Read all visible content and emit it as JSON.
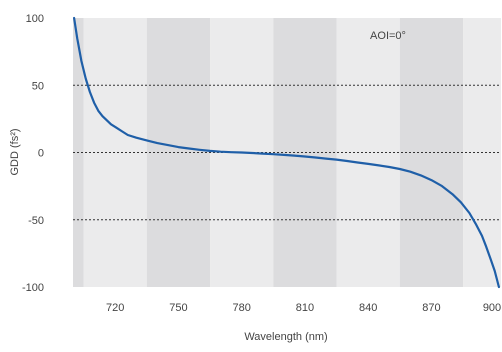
{
  "chart_data": {
    "type": "line",
    "title": "",
    "xlabel": "Wavelength (nm)",
    "ylabel": "GDD (fs²)",
    "xlim": [
      700,
      903
    ],
    "ylim": [
      -100,
      100
    ],
    "x_ticks": [
      720,
      750,
      780,
      810,
      840,
      870,
      900
    ],
    "y_ticks": [
      100,
      50,
      0,
      -50,
      -100
    ],
    "x_tick_labels": [
      "720",
      "750",
      "780",
      "810",
      "840",
      "870",
      "900"
    ],
    "y_tick_labels": [
      "100",
      "50",
      "0",
      "-50",
      "-100"
    ],
    "grid": "dotted horizontal lines at 50, 0, -50; alternating shaded vertical bands",
    "annotation": "AOI=0°",
    "band_colors": [
      "#dcdcde",
      "#ebebec"
    ],
    "series": [
      {
        "color": "#1f5fa8",
        "x": [
          700.5,
          702,
          704,
          706,
          708,
          710,
          712,
          714,
          716,
          718,
          720,
          723,
          726,
          730,
          735,
          740,
          745,
          750,
          755,
          760,
          765,
          770,
          775,
          780,
          785,
          790,
          795,
          800,
          805,
          810,
          815,
          820,
          825,
          830,
          835,
          840,
          845,
          850,
          855,
          860,
          865,
          870,
          875,
          880,
          884,
          888,
          891,
          894,
          896,
          898,
          900,
          901,
          902
        ],
        "y": [
          100,
          85,
          68,
          55,
          45,
          37,
          31,
          27,
          24,
          21,
          19,
          16,
          13,
          11,
          9,
          7,
          5.5,
          4,
          3,
          2,
          1.2,
          0.6,
          0.2,
          0,
          -0.4,
          -0.8,
          -1.3,
          -1.8,
          -2.3,
          -3,
          -3.7,
          -4.5,
          -5.3,
          -6.3,
          -7.4,
          -8.5,
          -9.6,
          -10.8,
          -12.3,
          -14.3,
          -17,
          -20.5,
          -25,
          -31,
          -37,
          -45,
          -53,
          -62,
          -70,
          -79,
          -88,
          -94,
          -100
        ]
      }
    ]
  }
}
